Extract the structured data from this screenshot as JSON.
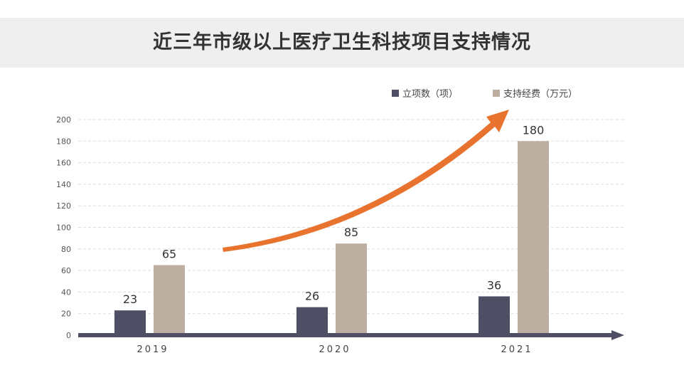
{
  "chart_data": {
    "type": "bar",
    "title": "近三年市级以上医疗卫生科技项目支持情况",
    "categories": [
      "2019",
      "2020",
      "2021"
    ],
    "series": [
      {
        "name": "立项数（项）",
        "values": [
          23,
          26,
          36
        ],
        "color": "#4e4f65"
      },
      {
        "name": "支持经费（万元）",
        "values": [
          65,
          85,
          180
        ],
        "color": "#bcaea0"
      }
    ],
    "ylim": [
      0,
      200
    ],
    "yticks": [
      0,
      20,
      40,
      60,
      80,
      100,
      120,
      140,
      160,
      180,
      200
    ],
    "grid": true,
    "legend": "top-right",
    "annotation": "orange upward trend arrow",
    "colors": {
      "arrow": "#e8732e",
      "axis": "#4e4f65",
      "title_band": "#efefef"
    }
  }
}
